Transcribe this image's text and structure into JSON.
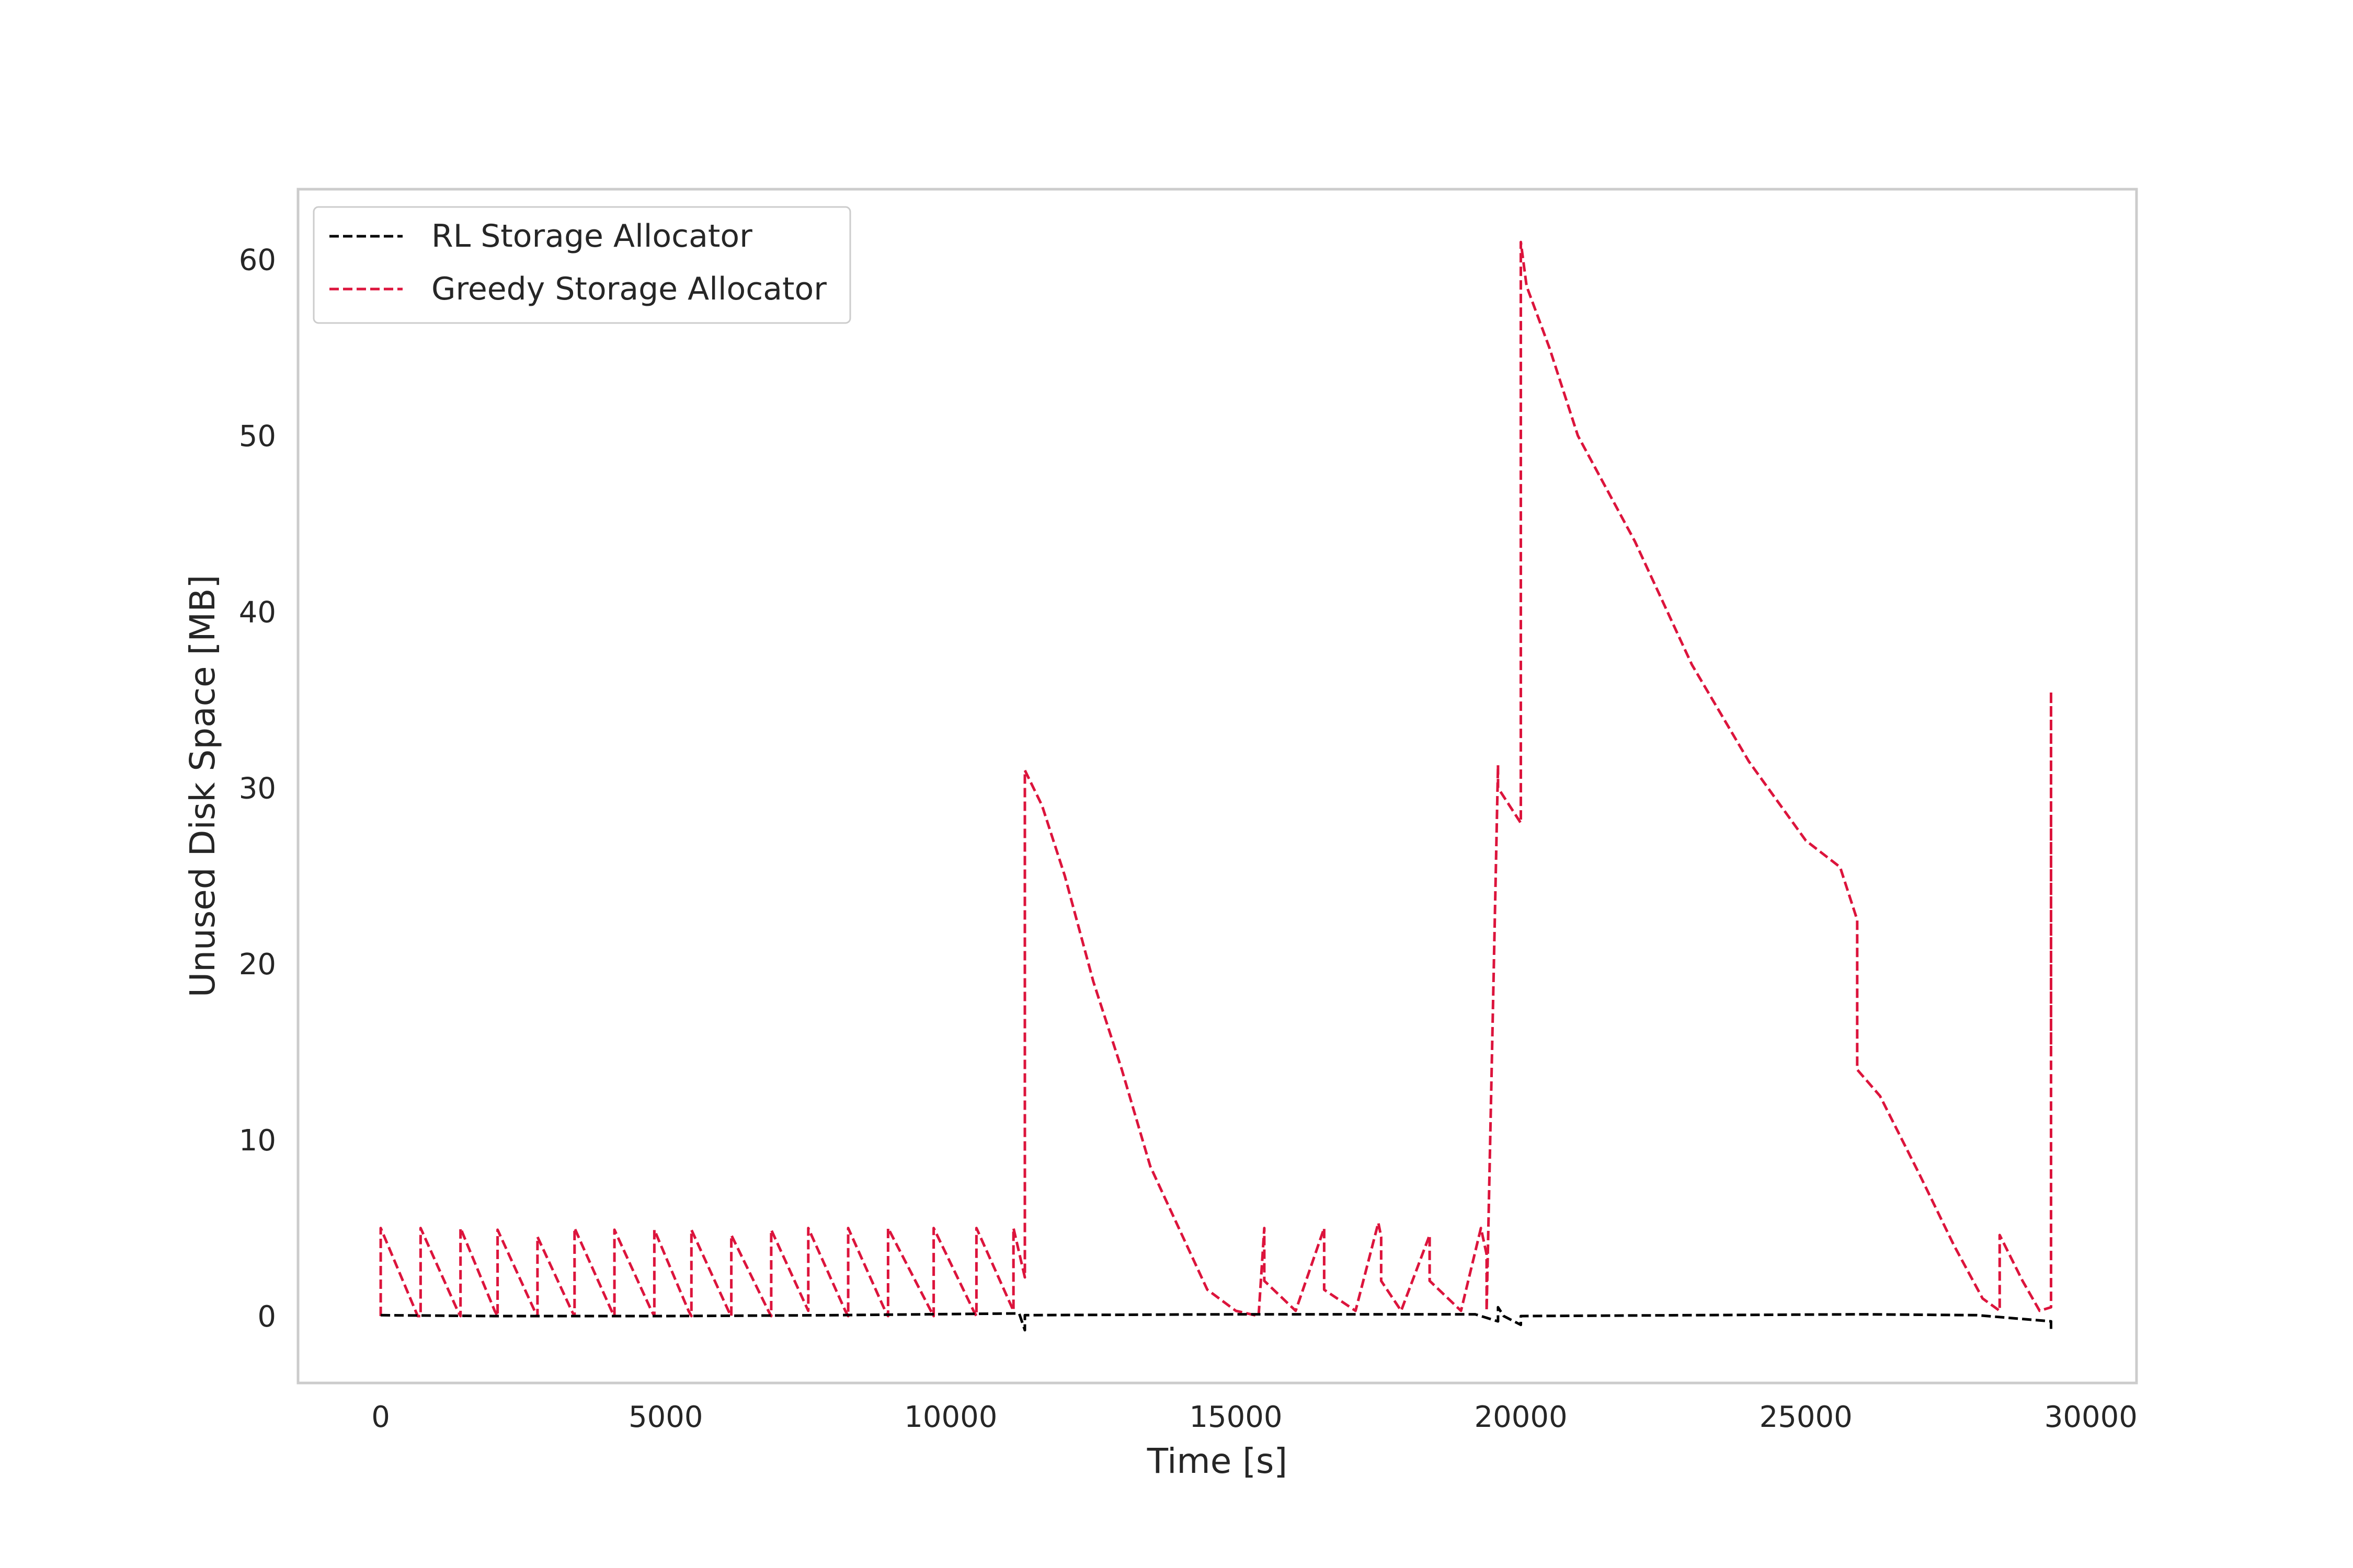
{
  "chart_data": {
    "type": "line",
    "title": "",
    "xlabel": "Time [s]",
    "ylabel": "Unused Disk Space [MB]",
    "xlim": [
      -1450,
      30800
    ],
    "ylim": [
      -3.8,
      64
    ],
    "xticks": [
      0,
      5000,
      10000,
      15000,
      20000,
      25000,
      30000
    ],
    "yticks": [
      0,
      10,
      20,
      30,
      40,
      50,
      60
    ],
    "xtick_labels": [
      "0",
      "5000",
      "10000",
      "15000",
      "20000",
      "25000",
      "30000"
    ],
    "ytick_labels": [
      "0",
      "10",
      "20",
      "30",
      "40",
      "50",
      "60"
    ],
    "grid": false,
    "legend_position": "upper-left",
    "line_style": "dashed",
    "series": [
      {
        "name": "RL Storage Allocator",
        "color": "#000000",
        "x": [
          0,
          2000,
          5000,
          8000,
          11200,
          11300,
          11300,
          15000,
          19200,
          19600,
          19600,
          19700,
          20000,
          20000,
          23000,
          26000,
          28000,
          29300,
          29300
        ],
        "y": [
          0.05,
          0.0,
          0.0,
          0.05,
          0.15,
          -0.8,
          0.05,
          0.1,
          0.1,
          -0.3,
          0.5,
          0.0,
          -0.5,
          0.0,
          0.05,
          0.1,
          0.05,
          -0.3,
          -0.9
        ]
      },
      {
        "name": "Greedy Storage Allocator",
        "color": "#dc143c",
        "x": [
          0,
          0,
          650,
          700,
          700,
          1350,
          1400,
          1400,
          2000,
          2050,
          2050,
          2700,
          2750,
          2750,
          3350,
          3400,
          3400,
          4050,
          4100,
          4100,
          4750,
          4800,
          4800,
          5400,
          5450,
          5450,
          6100,
          6150,
          6150,
          6800,
          6850,
          6850,
          7500,
          7500,
          8150,
          8200,
          8200,
          8850,
          8900,
          8900,
          9650,
          9700,
          9700,
          10400,
          10450,
          10450,
          11100,
          11100,
          11300,
          11300,
          11600,
          12000,
          12500,
          13000,
          13500,
          14000,
          14500,
          15000,
          15400,
          15500,
          15500,
          16050,
          16550,
          16550,
          17100,
          17500,
          17550,
          17550,
          17900,
          18400,
          18400,
          18950,
          19300,
          19400,
          19400,
          19600,
          19600,
          20000,
          20000,
          20100,
          20500,
          21000,
          22000,
          23000,
          24000,
          25000,
          25600,
          25900,
          25900,
          26300,
          27000,
          27600,
          28100,
          28400,
          28400,
          28800,
          29100,
          29300,
          29300,
          29300,
          29300
        ],
        "y": [
          0,
          5.0,
          0,
          0,
          5.0,
          0.3,
          0,
          5.0,
          0.3,
          0,
          4.9,
          0.3,
          0,
          4.5,
          0.3,
          0,
          5.0,
          0.3,
          0,
          4.9,
          0.3,
          0,
          4.9,
          0.3,
          0,
          4.9,
          0.3,
          0,
          4.6,
          0.3,
          0,
          4.9,
          0.3,
          5.0,
          0.3,
          0,
          5.0,
          0.3,
          0,
          5.0,
          0.3,
          0,
          5.0,
          0.3,
          0,
          5.0,
          0.3,
          5.0,
          2.2,
          31.0,
          29.0,
          25.0,
          19.0,
          14.0,
          8.5,
          5.0,
          1.5,
          0.3,
          0,
          5.0,
          2.0,
          0.3,
          5.0,
          1.5,
          0.3,
          5.3,
          4.5,
          2.0,
          0.3,
          4.6,
          2.0,
          0.3,
          5.0,
          3.5,
          0.3,
          31.3,
          30.0,
          28.0,
          61.0,
          58.5,
          55.0,
          50.0,
          44.0,
          37.0,
          31.5,
          27.0,
          25.5,
          22.5,
          14.0,
          12.5,
          8.0,
          4.0,
          1.0,
          0.3,
          4.6,
          2.0,
          0.3,
          0.5,
          35.5,
          15.0,
          28.0
        ]
      }
    ]
  }
}
